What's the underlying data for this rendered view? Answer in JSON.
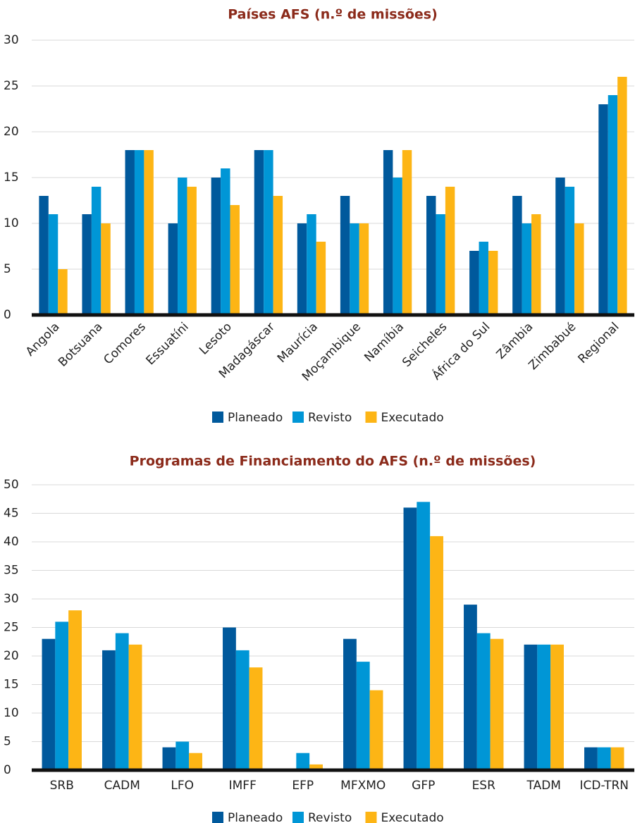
{
  "chart_data": [
    {
      "type": "bar",
      "title": "Países AFS (n.º de missões)",
      "categories": [
        "Angola",
        "Botsuana",
        "Comores",
        "Essuatíni",
        "Lesoto",
        "Madagáscar",
        "Maurícia",
        "Moçambique",
        "Namíbia",
        "Seicheles",
        "África do Sul",
        "Zâmbia",
        "Zimbabué",
        "Regional"
      ],
      "series": [
        {
          "name": "Planeado",
          "color": "#00599c",
          "values": [
            13,
            11,
            18,
            10,
            15,
            18,
            10,
            13,
            18,
            13,
            7,
            13,
            15,
            23
          ]
        },
        {
          "name": "Revisto",
          "color": "#0096d6",
          "values": [
            11,
            14,
            18,
            15,
            16,
            18,
            11,
            10,
            15,
            11,
            8,
            10,
            14,
            24
          ]
        },
        {
          "name": "Executado",
          "color": "#fdb515",
          "values": [
            5,
            10,
            18,
            14,
            12,
            13,
            8,
            10,
            18,
            14,
            7,
            11,
            10,
            26
          ]
        }
      ],
      "ylim": [
        0,
        30
      ],
      "yticks": [
        0,
        5,
        10,
        15,
        20,
        25,
        30
      ],
      "grid": true
    },
    {
      "type": "bar",
      "title": "Programas de Financiamento do AFS (n.º de missões)",
      "categories": [
        "SRB",
        "CADM",
        "LFO",
        "IMFF",
        "EFP",
        "MFXMO",
        "GFP",
        "ESR",
        "TADM",
        "ICD-TRN"
      ],
      "series": [
        {
          "name": "Planeado",
          "color": "#00599c",
          "values": [
            23,
            21,
            4,
            25,
            0,
            23,
            46,
            29,
            22,
            4
          ]
        },
        {
          "name": "Revisto",
          "color": "#0096d6",
          "values": [
            26,
            24,
            5,
            21,
            3,
            19,
            47,
            24,
            22,
            4
          ]
        },
        {
          "name": "Executado",
          "color": "#fdb515",
          "values": [
            28,
            22,
            3,
            18,
            1,
            14,
            41,
            23,
            22,
            4
          ]
        }
      ],
      "ylim": [
        0,
        50
      ],
      "yticks": [
        0,
        5,
        10,
        15,
        20,
        25,
        30,
        35,
        40,
        45,
        50
      ],
      "grid": true
    }
  ]
}
